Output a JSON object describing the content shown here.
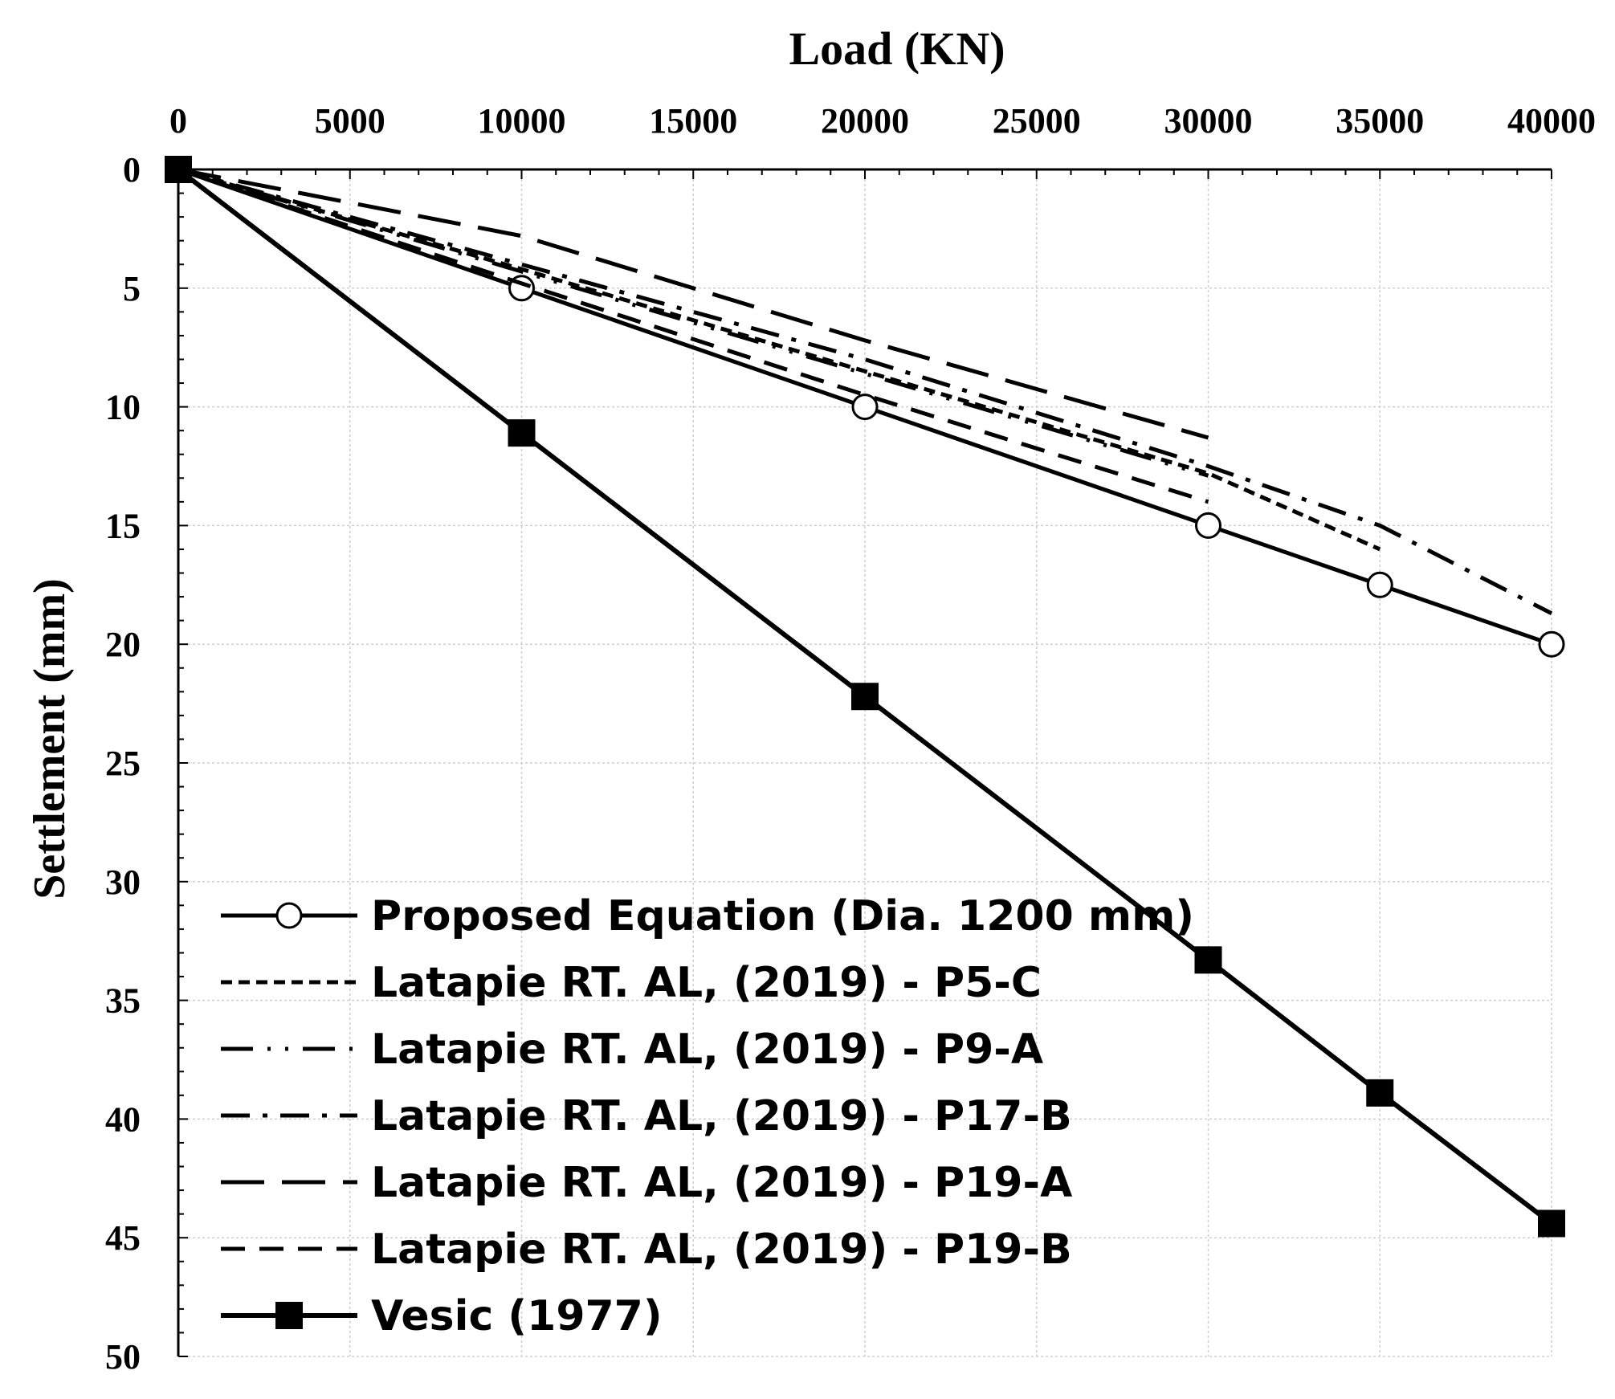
{
  "chart_data": {
    "type": "line",
    "xlabel": "Load (KN)",
    "ylabel": "Settlement (mm)",
    "xlim": [
      0,
      40000
    ],
    "ylim": [
      0,
      50
    ],
    "x_axis_position": "top",
    "y_axis_inverted": true,
    "xticks": [
      "0",
      "5000",
      "10000",
      "15000",
      "20000",
      "25000",
      "30000",
      "35000",
      "40000"
    ],
    "yticks": [
      "0",
      "5",
      "10",
      "15",
      "20",
      "25",
      "30",
      "35",
      "40",
      "45",
      "50"
    ],
    "grid": true,
    "legend_position": "bottom-left",
    "series": [
      {
        "name": "Proposed Equation (Dia. 1200 mm)",
        "style": "solid",
        "marker": "open-circle",
        "x": [
          0,
          10000,
          20000,
          30000,
          35000,
          40000
        ],
        "y": [
          0,
          5,
          10,
          15,
          17.5,
          20
        ]
      },
      {
        "name": "Latapie RT. AL, (2019) - P5-C",
        "style": "short-dash",
        "marker": "none",
        "x": [
          0,
          10000,
          20000,
          30000,
          35000
        ],
        "y": [
          0,
          4.2,
          8.5,
          12.8,
          16
        ]
      },
      {
        "name": "Latapie RT. AL, (2019) - P9-A",
        "style": "dash-dot-dot",
        "marker": "none",
        "x": [
          0,
          10000,
          20000,
          30000
        ],
        "y": [
          0,
          4.3,
          8.6,
          12.9
        ]
      },
      {
        "name": "Latapie RT. AL, (2019) - P17-B",
        "style": "dash-dot",
        "marker": "none",
        "x": [
          0,
          10000,
          20000,
          30000,
          35000,
          40000
        ],
        "y": [
          0,
          4,
          8,
          12.5,
          15,
          18.7
        ]
      },
      {
        "name": "Latapie RT. AL, (2019) - P19-A",
        "style": "long-dash",
        "marker": "none",
        "x": [
          0,
          10000,
          20000,
          30000
        ],
        "y": [
          0,
          2.8,
          7.2,
          11.3
        ]
      },
      {
        "name": "Latapie RT. AL, (2019) - P19-B",
        "style": "dash",
        "marker": "none",
        "x": [
          0,
          10000,
          20000,
          30000
        ],
        "y": [
          0,
          4.8,
          9.5,
          14
        ]
      },
      {
        "name": "Vesic (1977)",
        "style": "solid",
        "marker": "filled-square",
        "x": [
          0,
          10000,
          20000,
          30000,
          35000,
          40000
        ],
        "y": [
          0,
          11.1,
          22.2,
          33.3,
          38.9,
          44.4
        ]
      }
    ]
  }
}
